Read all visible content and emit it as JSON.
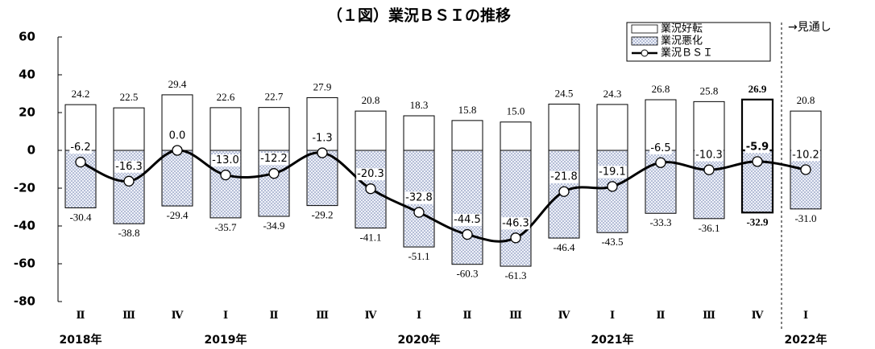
{
  "chart_data": {
    "type": "bar",
    "title": "（１図）業況ＢＳＩの推移",
    "categories": [
      "Ⅱ",
      "Ⅲ",
      "Ⅳ",
      "Ⅰ",
      "Ⅱ",
      "Ⅲ",
      "Ⅳ",
      "Ⅰ",
      "Ⅱ",
      "Ⅲ",
      "Ⅳ",
      "Ⅰ",
      "Ⅱ",
      "Ⅲ",
      "Ⅳ",
      "Ⅰ"
    ],
    "years": [
      "2018年",
      null,
      null,
      "2019年",
      null,
      null,
      null,
      "2020年",
      null,
      null,
      null,
      "2021年",
      null,
      null,
      null,
      "2022年"
    ],
    "series": [
      {
        "name": "業況好転",
        "color": "#ffffff",
        "values": [
          24.2,
          22.5,
          29.4,
          22.6,
          22.7,
          27.9,
          20.8,
          18.3,
          15.8,
          15.0,
          24.5,
          24.3,
          26.8,
          25.8,
          26.9,
          20.8
        ],
        "value_labels": [
          "24.2",
          "22.5",
          "29.4",
          "22.6",
          "22.7",
          "27.9",
          "20.8",
          "18.3",
          "15.8",
          "15.0",
          "24.5",
          "24.3",
          "26.8",
          "25.8",
          "26.9",
          "20.8"
        ]
      },
      {
        "name": "業況悪化",
        "color": "#aab6d6",
        "values": [
          -30.4,
          -38.8,
          -29.4,
          -35.7,
          -34.9,
          -29.2,
          -41.1,
          -51.1,
          -60.3,
          -61.3,
          -46.4,
          -43.5,
          -33.3,
          -36.1,
          -32.9,
          -31.0
        ],
        "value_labels": [
          "-30.4",
          "-38.8",
          "-29.4",
          "-35.7",
          "-34.9",
          "-29.2",
          "-41.1",
          "-51.1",
          "-60.3",
          "-61.3",
          "-46.4",
          "-43.5",
          "-33.3",
          "-36.1",
          "-32.9",
          "-31.0"
        ]
      },
      {
        "name": "業況ＢＳＩ",
        "color": "#000000",
        "type": "line",
        "values": [
          -6.2,
          -16.3,
          0.0,
          -13.0,
          -12.2,
          -1.3,
          -20.3,
          -32.8,
          -44.5,
          -46.3,
          -21.8,
          -19.1,
          -6.5,
          -10.3,
          -5.9,
          -10.2
        ],
        "value_labels": [
          "-6.2",
          "-16.3",
          "0.0",
          "-13.0",
          "-12.2",
          "-1.3",
          "-20.3",
          "-32.8",
          "-44.5",
          "-46.3",
          "-21.8",
          "-19.1",
          "-6.5",
          "-10.3",
          "-5.9",
          "-10.2"
        ]
      }
    ],
    "ylim": [
      -80,
      60
    ],
    "yticks": [
      -80,
      -60,
      -40,
      -20,
      0,
      20,
      40,
      60
    ],
    "forecast_label": "→見通し",
    "forecast_from": 15,
    "highlight_index": 14,
    "legend": "top-right"
  }
}
